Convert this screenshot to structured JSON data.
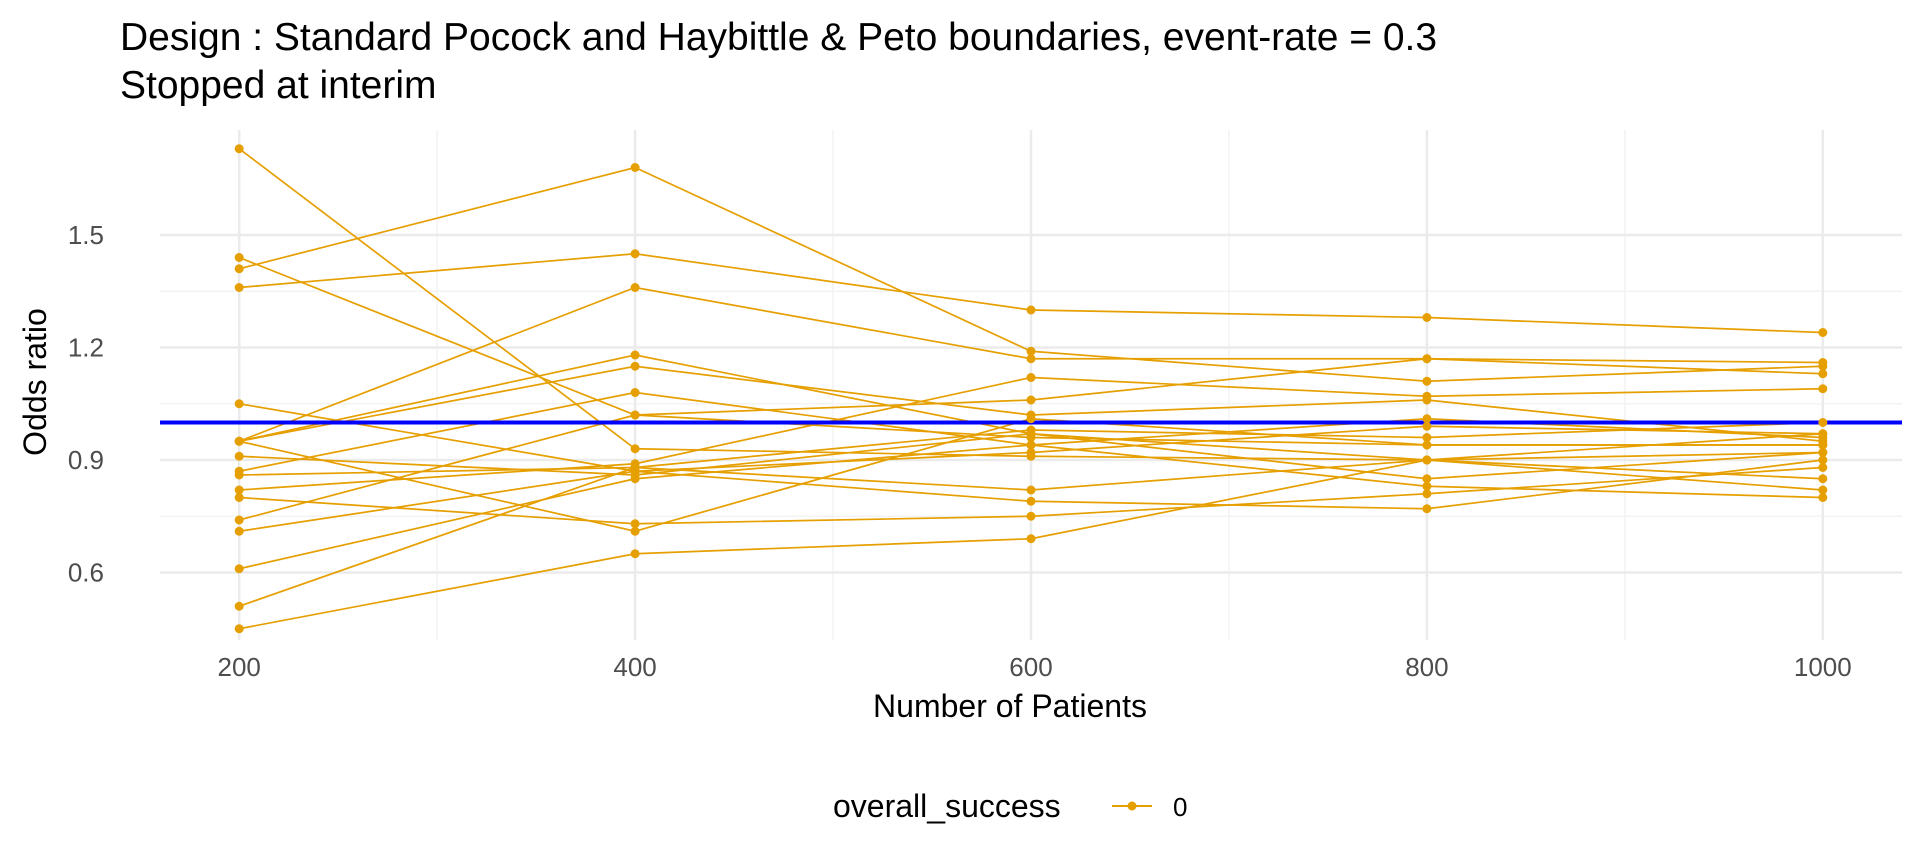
{
  "chart_data": {
    "type": "line",
    "title": "Design : Standard Pocock and Haybittle & Peto boundaries, event-rate = 0.3",
    "subtitle": "Stopped at interim",
    "xlabel": "Number of Patients",
    "ylabel": "Odds ratio",
    "x": [
      200,
      400,
      600,
      800,
      1000
    ],
    "xticks": [
      200,
      400,
      600,
      800,
      1000
    ],
    "yticks": [
      0.6,
      0.9,
      1.2,
      1.5
    ],
    "xticklabels": [
      "200",
      "400",
      "600",
      "800",
      "1000"
    ],
    "yticklabels": [
      "0.6",
      "0.9",
      "1.2",
      "1.5"
    ],
    "xlim": [
      160,
      1040
    ],
    "ylim": [
      0.42,
      1.78
    ],
    "grid": true,
    "reference_line": {
      "y": 1.0,
      "color": "#0000FF"
    },
    "legend": {
      "title": "overall_success",
      "entries": [
        "0"
      ],
      "position": "bottom"
    },
    "series_color": "#E69F00",
    "series": [
      {
        "values": [
          1.73,
          0.93,
          0.91,
          0.9,
          0.92
        ]
      },
      {
        "values": [
          1.41,
          1.68,
          1.19,
          1.11,
          1.15
        ]
      },
      {
        "values": [
          1.44,
          1.02,
          0.96,
          0.94,
          0.94
        ]
      },
      {
        "values": [
          1.36,
          1.45,
          1.3,
          1.28,
          1.24
        ]
      },
      {
        "values": [
          1.05,
          0.87,
          0.92,
          0.99,
          0.97
        ]
      },
      {
        "values": [
          0.95,
          1.36,
          1.17,
          1.17,
          1.16
        ]
      },
      {
        "values": [
          0.95,
          1.18,
          0.97,
          0.85,
          0.92
        ]
      },
      {
        "values": [
          0.95,
          1.15,
          1.02,
          1.06,
          0.95
        ]
      },
      {
        "values": [
          0.91,
          0.86,
          0.97,
          0.9,
          0.85
        ]
      },
      {
        "values": [
          0.87,
          1.08,
          0.94,
          1.01,
          0.96
        ]
      },
      {
        "values": [
          0.86,
          0.88,
          0.82,
          0.9,
          0.82
        ]
      },
      {
        "values": [
          0.82,
          0.89,
          1.12,
          1.07,
          1.09
        ]
      },
      {
        "values": [
          0.8,
          0.73,
          0.75,
          0.81,
          0.88
        ]
      },
      {
        "values": [
          0.74,
          1.02,
          1.06,
          1.17,
          1.13
        ]
      },
      {
        "values": [
          0.71,
          0.87,
          0.79,
          0.77,
          0.9
        ]
      },
      {
        "values": [
          0.61,
          0.85,
          0.94,
          0.83,
          0.8
        ]
      },
      {
        "values": [
          0.51,
          0.88,
          0.98,
          0.96,
          1.0
        ]
      },
      {
        "values": [
          0.45,
          0.65,
          0.69,
          0.9,
          0.97
        ]
      },
      {
        "values": [
          0.95,
          0.71,
          1.01,
          0.94,
          0.94
        ]
      }
    ]
  }
}
